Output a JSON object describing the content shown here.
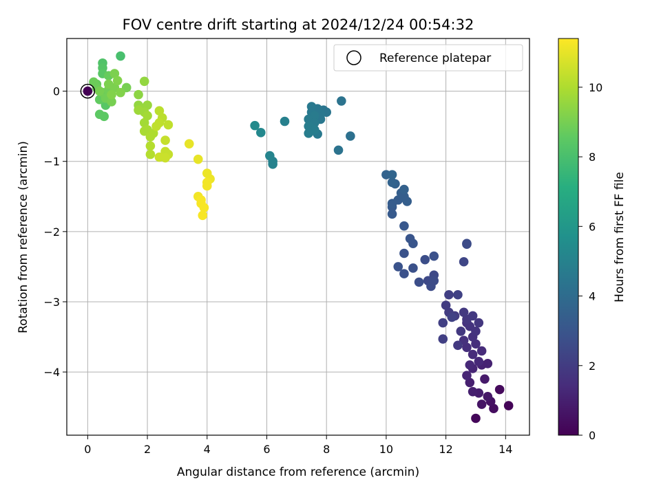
{
  "chart_data": {
    "type": "scatter",
    "title": "FOV centre drift starting at 2024/12/24 00:54:32",
    "xlabel": "Angular distance from reference (arcmin)",
    "ylabel": "Rotation from reference (arcmin)",
    "xlim": [
      -0.7,
      14.8
    ],
    "ylim": [
      -4.9,
      0.75
    ],
    "xticks": [
      0,
      2,
      4,
      6,
      8,
      10,
      12,
      14
    ],
    "xtick_labels": [
      "0",
      "2",
      "4",
      "6",
      "8",
      "10",
      "12",
      "14"
    ],
    "yticks": [
      0,
      -1,
      -2,
      -3,
      -4
    ],
    "ytick_labels": [
      "0",
      "−1",
      "−2",
      "−3",
      "−4"
    ],
    "grid": true,
    "legend": {
      "position": "top-right",
      "entries": [
        {
          "label": "Reference platepar",
          "marker": "open-circle"
        }
      ]
    },
    "colorbar": {
      "label": "Hours from first FF file",
      "colormap": "viridis",
      "range": [
        0,
        11.4
      ],
      "ticks": [
        0,
        2,
        4,
        6,
        8,
        10
      ],
      "tick_labels": [
        "0",
        "2",
        "4",
        "6",
        "8",
        "10"
      ]
    },
    "reference_point": {
      "x": 0,
      "y": 0
    },
    "points": [
      {
        "x": 14.1,
        "y": -4.48,
        "t": 0.1
      },
      {
        "x": 13.0,
        "y": -4.66,
        "t": 0.2
      },
      {
        "x": 13.8,
        "y": -4.25,
        "t": 0.3
      },
      {
        "x": 13.6,
        "y": -4.52,
        "t": 0.4
      },
      {
        "x": 13.5,
        "y": -4.42,
        "t": 0.5
      },
      {
        "x": 13.2,
        "y": -4.46,
        "t": 0.6
      },
      {
        "x": 13.4,
        "y": -4.35,
        "t": 0.7
      },
      {
        "x": 13.3,
        "y": -4.1,
        "t": 0.8
      },
      {
        "x": 13.1,
        "y": -4.3,
        "t": 0.9
      },
      {
        "x": 12.9,
        "y": -4.28,
        "t": 1.0
      },
      {
        "x": 12.8,
        "y": -4.15,
        "t": 1.0
      },
      {
        "x": 13.4,
        "y": -3.88,
        "t": 1.1
      },
      {
        "x": 13.2,
        "y": -3.9,
        "t": 1.1
      },
      {
        "x": 12.7,
        "y": -4.05,
        "t": 1.2
      },
      {
        "x": 12.9,
        "y": -3.95,
        "t": 1.2
      },
      {
        "x": 13.1,
        "y": -3.85,
        "t": 1.3
      },
      {
        "x": 12.8,
        "y": -3.9,
        "t": 1.3
      },
      {
        "x": 13.2,
        "y": -3.7,
        "t": 1.4
      },
      {
        "x": 12.9,
        "y": -3.75,
        "t": 1.4
      },
      {
        "x": 13.0,
        "y": -3.6,
        "t": 1.5
      },
      {
        "x": 12.7,
        "y": -3.65,
        "t": 1.5
      },
      {
        "x": 12.6,
        "y": -3.55,
        "t": 1.6
      },
      {
        "x": 12.9,
        "y": -3.5,
        "t": 1.6
      },
      {
        "x": 13.0,
        "y": -3.42,
        "t": 1.7
      },
      {
        "x": 12.8,
        "y": -3.35,
        "t": 1.7
      },
      {
        "x": 13.1,
        "y": -3.3,
        "t": 1.8
      },
      {
        "x": 12.7,
        "y": -3.25,
        "t": 1.8
      },
      {
        "x": 12.9,
        "y": -3.2,
        "t": 1.9
      },
      {
        "x": 12.6,
        "y": -3.15,
        "t": 1.9
      },
      {
        "x": 12.4,
        "y": -3.62,
        "t": 1.9
      },
      {
        "x": 12.5,
        "y": -3.42,
        "t": 1.9
      },
      {
        "x": 12.3,
        "y": -3.2,
        "t": 2.0
      },
      {
        "x": 12.1,
        "y": -3.15,
        "t": 2.0
      },
      {
        "x": 12.0,
        "y": -3.05,
        "t": 2.0
      },
      {
        "x": 11.9,
        "y": -3.3,
        "t": 2.1
      },
      {
        "x": 11.9,
        "y": -3.53,
        "t": 2.1
      },
      {
        "x": 12.1,
        "y": -2.9,
        "t": 2.1
      },
      {
        "x": 12.4,
        "y": -2.9,
        "t": 2.2
      },
      {
        "x": 12.2,
        "y": -3.22,
        "t": 2.2
      },
      {
        "x": 12.7,
        "y": -3.3,
        "t": 1.6
      },
      {
        "x": 12.7,
        "y": -2.17,
        "t": 2.6
      },
      {
        "x": 12.7,
        "y": -2.18,
        "t": 2.6
      },
      {
        "x": 12.6,
        "y": -2.43,
        "t": 2.4
      },
      {
        "x": 11.6,
        "y": -2.62,
        "t": 2.5
      },
      {
        "x": 11.4,
        "y": -2.7,
        "t": 2.5
      },
      {
        "x": 11.5,
        "y": -2.78,
        "t": 2.6
      },
      {
        "x": 11.6,
        "y": -2.7,
        "t": 2.6
      },
      {
        "x": 11.3,
        "y": -2.4,
        "t": 2.7
      },
      {
        "x": 11.1,
        "y": -2.72,
        "t": 2.7
      },
      {
        "x": 10.9,
        "y": -2.52,
        "t": 2.8
      },
      {
        "x": 10.6,
        "y": -2.6,
        "t": 2.8
      },
      {
        "x": 10.4,
        "y": -2.5,
        "t": 2.9
      },
      {
        "x": 11.6,
        "y": -2.35,
        "t": 2.8
      },
      {
        "x": 10.6,
        "y": -2.31,
        "t": 2.9
      },
      {
        "x": 10.8,
        "y": -2.1,
        "t": 3.0
      },
      {
        "x": 10.9,
        "y": -2.17,
        "t": 3.0
      },
      {
        "x": 10.6,
        "y": -1.92,
        "t": 3.1
      },
      {
        "x": 10.2,
        "y": -1.75,
        "t": 3.2
      },
      {
        "x": 10.2,
        "y": -1.65,
        "t": 3.2
      },
      {
        "x": 10.2,
        "y": -1.6,
        "t": 3.3
      },
      {
        "x": 10.4,
        "y": -1.55,
        "t": 3.3
      },
      {
        "x": 10.6,
        "y": -1.5,
        "t": 3.4
      },
      {
        "x": 10.7,
        "y": -1.57,
        "t": 3.4
      },
      {
        "x": 10.5,
        "y": -1.45,
        "t": 3.4
      },
      {
        "x": 10.6,
        "y": -1.4,
        "t": 3.5
      },
      {
        "x": 10.3,
        "y": -1.32,
        "t": 3.5
      },
      {
        "x": 10.2,
        "y": -1.3,
        "t": 3.6
      },
      {
        "x": 10.0,
        "y": -1.19,
        "t": 3.6
      },
      {
        "x": 10.2,
        "y": -1.19,
        "t": 3.7
      },
      {
        "x": 8.8,
        "y": -0.64,
        "t": 4.2
      },
      {
        "x": 8.4,
        "y": -0.84,
        "t": 4.3
      },
      {
        "x": 8.5,
        "y": -0.14,
        "t": 4.3
      },
      {
        "x": 8.0,
        "y": -0.3,
        "t": 4.4
      },
      {
        "x": 7.9,
        "y": -0.27,
        "t": 4.4
      },
      {
        "x": 7.8,
        "y": -0.33,
        "t": 4.5
      },
      {
        "x": 7.7,
        "y": -0.25,
        "t": 4.5
      },
      {
        "x": 7.8,
        "y": -0.4,
        "t": 4.5
      },
      {
        "x": 7.7,
        "y": -0.61,
        "t": 4.6
      },
      {
        "x": 7.5,
        "y": -0.22,
        "t": 4.6
      },
      {
        "x": 7.5,
        "y": -0.3,
        "t": 4.6
      },
      {
        "x": 7.6,
        "y": -0.35,
        "t": 4.7
      },
      {
        "x": 7.4,
        "y": -0.4,
        "t": 4.7
      },
      {
        "x": 7.6,
        "y": -0.45,
        "t": 4.7
      },
      {
        "x": 7.4,
        "y": -0.5,
        "t": 4.8
      },
      {
        "x": 7.6,
        "y": -0.55,
        "t": 4.8
      },
      {
        "x": 7.4,
        "y": -0.6,
        "t": 4.8
      },
      {
        "x": 6.6,
        "y": -0.43,
        "t": 4.9
      },
      {
        "x": 6.2,
        "y": -1.04,
        "t": 5.0
      },
      {
        "x": 6.2,
        "y": -1.0,
        "t": 5.0
      },
      {
        "x": 6.1,
        "y": -0.92,
        "t": 5.1
      },
      {
        "x": 5.8,
        "y": -0.59,
        "t": 5.3
      },
      {
        "x": 5.6,
        "y": -0.49,
        "t": 5.4
      },
      {
        "x": 1.1,
        "y": 0.5,
        "t": 8.0
      },
      {
        "x": 0.5,
        "y": 0.4,
        "t": 8.2
      },
      {
        "x": 0.5,
        "y": 0.33,
        "t": 8.3
      },
      {
        "x": 0.5,
        "y": 0.25,
        "t": 8.4
      },
      {
        "x": 0.6,
        "y": -0.2,
        "t": 8.4
      },
      {
        "x": 0.55,
        "y": -0.36,
        "t": 8.5
      },
      {
        "x": 0.4,
        "y": -0.33,
        "t": 8.5
      },
      {
        "x": 0.4,
        "y": -0.12,
        "t": 8.6
      },
      {
        "x": 0.7,
        "y": 0.22,
        "t": 8.7
      },
      {
        "x": 0.3,
        "y": 0.1,
        "t": 8.7
      },
      {
        "x": 0.3,
        "y": 0.05,
        "t": 8.8
      },
      {
        "x": 0.5,
        "y": -0.02,
        "t": 8.8
      },
      {
        "x": 0.6,
        "y": -0.1,
        "t": 8.9
      },
      {
        "x": 0.7,
        "y": 0.02,
        "t": 8.9
      },
      {
        "x": 0.4,
        "y": 0.0,
        "t": 9.0
      },
      {
        "x": 0.8,
        "y": -0.15,
        "t": 9.0
      },
      {
        "x": 0.9,
        "y": 0.05,
        "t": 9.1
      },
      {
        "x": 0.9,
        "y": 0.25,
        "t": 9.1
      },
      {
        "x": 1.0,
        "y": 0.15,
        "t": 9.2
      },
      {
        "x": 1.1,
        "y": -0.02,
        "t": 9.2
      },
      {
        "x": 1.3,
        "y": 0.05,
        "t": 9.0
      },
      {
        "x": 0.2,
        "y": 0.13,
        "t": 8.8
      },
      {
        "x": 0.7,
        "y": 0.1,
        "t": 9.1
      },
      {
        "x": 0.8,
        "y": -0.05,
        "t": 9.2
      },
      {
        "x": 1.7,
        "y": -0.05,
        "t": 9.4
      },
      {
        "x": 1.9,
        "y": 0.14,
        "t": 9.5
      },
      {
        "x": 1.7,
        "y": -0.2,
        "t": 9.5
      },
      {
        "x": 1.8,
        "y": -0.25,
        "t": 9.6
      },
      {
        "x": 2.0,
        "y": -0.2,
        "t": 9.6
      },
      {
        "x": 1.9,
        "y": -0.3,
        "t": 9.7
      },
      {
        "x": 1.7,
        "y": -0.27,
        "t": 9.7
      },
      {
        "x": 2.0,
        "y": -0.35,
        "t": 9.8
      },
      {
        "x": 1.9,
        "y": -0.45,
        "t": 9.8
      },
      {
        "x": 2.0,
        "y": -0.55,
        "t": 9.9
      },
      {
        "x": 1.9,
        "y": -0.57,
        "t": 9.9
      },
      {
        "x": 2.2,
        "y": -0.6,
        "t": 10.0
      },
      {
        "x": 2.1,
        "y": -0.65,
        "t": 10.0
      },
      {
        "x": 2.1,
        "y": -0.78,
        "t": 10.1
      },
      {
        "x": 2.1,
        "y": -0.9,
        "t": 10.1
      },
      {
        "x": 2.4,
        "y": -0.28,
        "t": 10.2
      },
      {
        "x": 2.5,
        "y": -0.38,
        "t": 10.2
      },
      {
        "x": 2.3,
        "y": -0.5,
        "t": 10.3
      },
      {
        "x": 2.4,
        "y": -0.45,
        "t": 10.3
      },
      {
        "x": 2.7,
        "y": -0.48,
        "t": 10.3
      },
      {
        "x": 2.6,
        "y": -0.7,
        "t": 10.4
      },
      {
        "x": 2.6,
        "y": -0.86,
        "t": 10.4
      },
      {
        "x": 2.7,
        "y": -0.9,
        "t": 10.4
      },
      {
        "x": 2.6,
        "y": -0.95,
        "t": 10.5
      },
      {
        "x": 2.4,
        "y": -0.94,
        "t": 10.5
      },
      {
        "x": 3.4,
        "y": -0.75,
        "t": 11.0
      },
      {
        "x": 3.7,
        "y": -0.97,
        "t": 11.0
      },
      {
        "x": 4.0,
        "y": -1.17,
        "t": 11.1
      },
      {
        "x": 4.1,
        "y": -1.25,
        "t": 11.1
      },
      {
        "x": 4.0,
        "y": -1.3,
        "t": 11.2
      },
      {
        "x": 4.0,
        "y": -1.35,
        "t": 11.2
      },
      {
        "x": 3.7,
        "y": -1.5,
        "t": 11.2
      },
      {
        "x": 3.8,
        "y": -1.6,
        "t": 11.3
      },
      {
        "x": 3.9,
        "y": -1.66,
        "t": 11.3
      },
      {
        "x": 3.85,
        "y": -1.77,
        "t": 11.3
      },
      {
        "x": 3.8,
        "y": -1.55,
        "t": 11.3
      },
      {
        "x": 0.0,
        "y": 0.0,
        "t": 0.0
      }
    ]
  }
}
